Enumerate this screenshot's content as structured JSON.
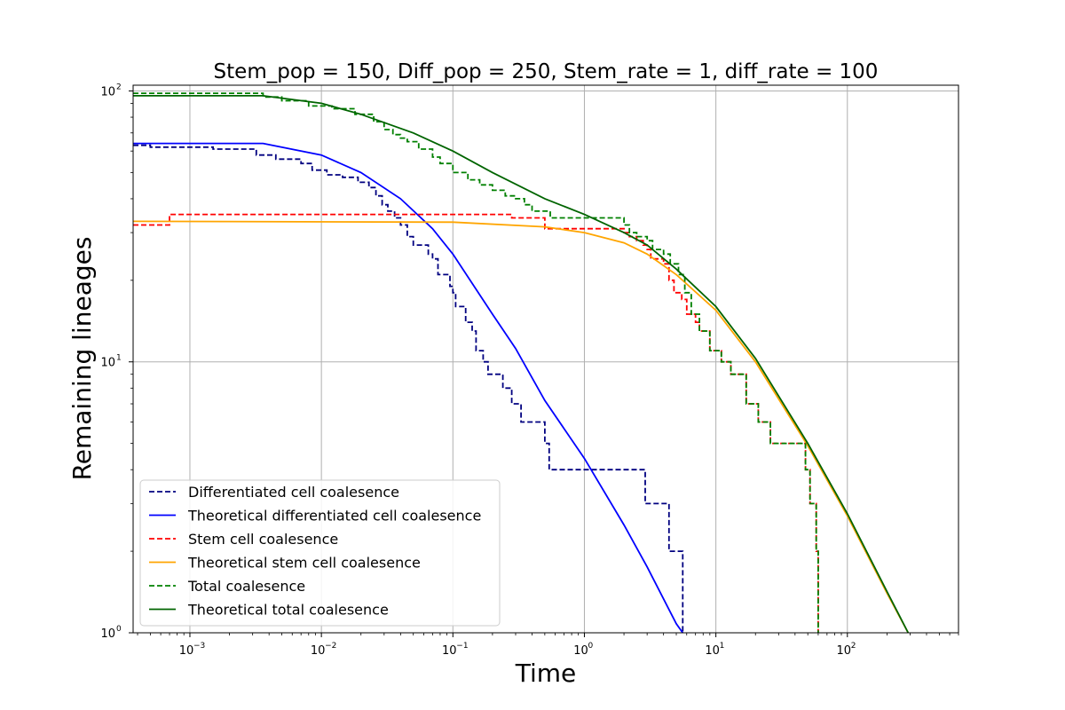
{
  "chart_data": {
    "type": "line",
    "title": "Stem_pop = 150, Diff_pop = 250, Stem_rate = 1, diff_rate = 100",
    "xlabel": "Time",
    "ylabel": "Remaining lineages",
    "xscale": "log",
    "yscale": "log",
    "xlim": [
      0.00037,
      700
    ],
    "ylim": [
      1,
      105
    ],
    "grid": true,
    "legend_position": "lower-left",
    "xticks": [
      {
        "value": 0.001,
        "base": "10",
        "exp": "−3"
      },
      {
        "value": 0.01,
        "base": "10",
        "exp": "−2"
      },
      {
        "value": 0.1,
        "base": "10",
        "exp": "−1"
      },
      {
        "value": 1,
        "base": "10",
        "exp": "0"
      },
      {
        "value": 10,
        "base": "10",
        "exp": "1"
      },
      {
        "value": 100,
        "base": "10",
        "exp": "2"
      }
    ],
    "yticks": [
      {
        "value": 1,
        "base": "10",
        "exp": "0"
      },
      {
        "value": 10,
        "base": "10",
        "exp": "1"
      },
      {
        "value": 100,
        "base": "10",
        "exp": "2"
      }
    ],
    "series": [
      {
        "name": "Differentiated cell coalesence",
        "color": "#000080",
        "dash": "dashed",
        "step": true,
        "points": [
          [
            0.00037,
            63
          ],
          [
            0.0005,
            62
          ],
          [
            0.0015,
            61
          ],
          [
            0.0032,
            58
          ],
          [
            0.0045,
            56
          ],
          [
            0.007,
            54
          ],
          [
            0.0085,
            51
          ],
          [
            0.011,
            49
          ],
          [
            0.0145,
            48
          ],
          [
            0.019,
            46
          ],
          [
            0.023,
            44
          ],
          [
            0.026,
            41
          ],
          [
            0.029,
            38
          ],
          [
            0.032,
            36
          ],
          [
            0.036,
            34
          ],
          [
            0.04,
            32
          ],
          [
            0.045,
            29
          ],
          [
            0.05,
            27
          ],
          [
            0.06,
            27
          ],
          [
            0.065,
            25
          ],
          [
            0.07,
            24
          ],
          [
            0.077,
            21
          ],
          [
            0.09,
            21
          ],
          [
            0.095,
            19
          ],
          [
            0.1,
            18
          ],
          [
            0.105,
            16
          ],
          [
            0.12,
            16
          ],
          [
            0.125,
            14
          ],
          [
            0.14,
            13
          ],
          [
            0.15,
            11
          ],
          [
            0.165,
            11
          ],
          [
            0.17,
            10
          ],
          [
            0.185,
            9
          ],
          [
            0.22,
            9
          ],
          [
            0.24,
            8
          ],
          [
            0.28,
            7
          ],
          [
            0.33,
            6
          ],
          [
            0.47,
            6
          ],
          [
            0.5,
            5
          ],
          [
            0.54,
            4
          ],
          [
            2.8,
            4
          ],
          [
            2.9,
            3
          ],
          [
            4.3,
            3
          ],
          [
            4.4,
            2
          ],
          [
            5.5,
            2
          ],
          [
            5.6,
            1
          ]
        ]
      },
      {
        "name": "Theoretical differentiated cell coalesence",
        "color": "#0000ff",
        "dash": "solid",
        "step": false,
        "points": [
          [
            0.00037,
            64
          ],
          [
            0.0036,
            64
          ],
          [
            0.01,
            58
          ],
          [
            0.02,
            50
          ],
          [
            0.04,
            40
          ],
          [
            0.07,
            31
          ],
          [
            0.1,
            25
          ],
          [
            0.2,
            15
          ],
          [
            0.3,
            11.2
          ],
          [
            0.5,
            7.2
          ],
          [
            1,
            4.4
          ],
          [
            2,
            2.5
          ],
          [
            3,
            1.75
          ],
          [
            5,
            1.08
          ],
          [
            5.6,
            1
          ]
        ]
      },
      {
        "name": "Stem cell coalesence",
        "color": "#ff0000",
        "dash": "dashed",
        "step": true,
        "points": [
          [
            0.00037,
            32
          ],
          [
            0.0007,
            35
          ],
          [
            0.28,
            34
          ],
          [
            0.5,
            31
          ],
          [
            2,
            30
          ],
          [
            2.2,
            29
          ],
          [
            2.5,
            28
          ],
          [
            2.8,
            27
          ],
          [
            3,
            26
          ],
          [
            3.2,
            24
          ],
          [
            4,
            23
          ],
          [
            4.4,
            20
          ],
          [
            4.8,
            18
          ],
          [
            5.5,
            17
          ],
          [
            6,
            15
          ],
          [
            7,
            14
          ],
          [
            7.5,
            13
          ],
          [
            9,
            11
          ],
          [
            11,
            10
          ],
          [
            13,
            9
          ],
          [
            17,
            7
          ],
          [
            21,
            6
          ],
          [
            26,
            5
          ],
          [
            48,
            4
          ],
          [
            52,
            3
          ],
          [
            58,
            2
          ],
          [
            60,
            1
          ]
        ]
      },
      {
        "name": "Theoretical stem cell coalesence",
        "color": "#ffa500",
        "dash": "solid",
        "step": false,
        "points": [
          [
            0.00037,
            33
          ],
          [
            0.1,
            32.8
          ],
          [
            0.5,
            31.5
          ],
          [
            1,
            30
          ],
          [
            2,
            27.5
          ],
          [
            3,
            25
          ],
          [
            5,
            21
          ],
          [
            10,
            15.5
          ],
          [
            20,
            10
          ],
          [
            50,
            4.9
          ],
          [
            100,
            2.7
          ],
          [
            200,
            1.4
          ],
          [
            290,
            1
          ]
        ]
      },
      {
        "name": "Total coalesence",
        "color": "#008000",
        "dash": "dashed",
        "step": true,
        "points": [
          [
            0.00037,
            98
          ],
          [
            0.0036,
            95
          ],
          [
            0.005,
            92
          ],
          [
            0.008,
            88
          ],
          [
            0.012,
            86
          ],
          [
            0.018,
            82
          ],
          [
            0.025,
            77
          ],
          [
            0.03,
            72
          ],
          [
            0.035,
            69
          ],
          [
            0.04,
            67
          ],
          [
            0.045,
            65
          ],
          [
            0.055,
            61
          ],
          [
            0.07,
            57
          ],
          [
            0.08,
            54
          ],
          [
            0.1,
            50
          ],
          [
            0.13,
            47
          ],
          [
            0.16,
            45
          ],
          [
            0.2,
            43
          ],
          [
            0.25,
            41
          ],
          [
            0.3,
            40
          ],
          [
            0.35,
            38
          ],
          [
            0.4,
            36
          ],
          [
            0.55,
            34
          ],
          [
            1.3,
            34
          ],
          [
            2,
            32
          ],
          [
            2.2,
            30
          ],
          [
            2.5,
            29
          ],
          [
            3,
            28
          ],
          [
            3.3,
            26
          ],
          [
            4,
            25
          ],
          [
            4.5,
            23
          ],
          [
            5.2,
            21
          ],
          [
            5.8,
            18
          ],
          [
            6.5,
            15
          ],
          [
            7.5,
            13
          ],
          [
            9,
            11
          ],
          [
            11,
            10
          ],
          [
            13,
            9
          ],
          [
            17,
            7
          ],
          [
            21,
            6
          ],
          [
            26,
            5
          ],
          [
            48,
            4
          ],
          [
            52,
            3
          ],
          [
            58,
            2
          ],
          [
            60,
            1
          ]
        ]
      },
      {
        "name": "Theoretical total coalesence",
        "color": "#006400",
        "dash": "solid",
        "step": false,
        "points": [
          [
            0.00037,
            96
          ],
          [
            0.0036,
            96
          ],
          [
            0.01,
            90
          ],
          [
            0.02,
            82
          ],
          [
            0.05,
            70
          ],
          [
            0.1,
            60
          ],
          [
            0.2,
            50
          ],
          [
            0.5,
            40
          ],
          [
            1,
            35
          ],
          [
            2,
            30
          ],
          [
            3,
            27
          ],
          [
            5,
            22
          ],
          [
            10,
            16
          ],
          [
            20,
            10.3
          ],
          [
            50,
            5
          ],
          [
            100,
            2.75
          ],
          [
            200,
            1.42
          ],
          [
            290,
            1
          ]
        ]
      }
    ]
  }
}
